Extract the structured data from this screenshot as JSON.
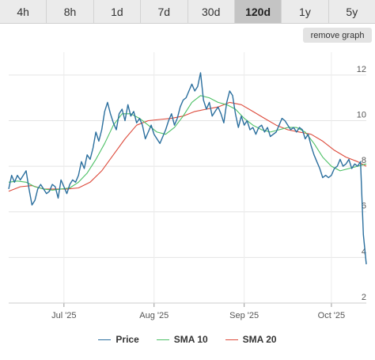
{
  "range_tabs": [
    "4h",
    "8h",
    "1d",
    "7d",
    "30d",
    "120d",
    "1y",
    "5y"
  ],
  "active_tab": "120d",
  "remove_graph_label": "remove graph",
  "chart_data": {
    "type": "line",
    "x_range": [
      "2025-06-12",
      "2025-10-13"
    ],
    "ylim": [
      2,
      13
    ],
    "y_ticks": [
      2,
      4,
      6,
      8,
      10,
      12
    ],
    "x_ticks": [
      {
        "date": "2025-07-01",
        "label": "Jul '25"
      },
      {
        "date": "2025-08-01",
        "label": "Aug '25"
      },
      {
        "date": "2025-09-01",
        "label": "Sep '25"
      },
      {
        "date": "2025-10-01",
        "label": "Oct '25"
      }
    ],
    "grid": true,
    "legend_position": "bottom",
    "series": [
      {
        "name": "Price",
        "color": "#2b6f9e",
        "points": [
          [
            "2025-06-12",
            7.0
          ],
          [
            "2025-06-13",
            7.6
          ],
          [
            "2025-06-14",
            7.3
          ],
          [
            "2025-06-15",
            7.6
          ],
          [
            "2025-06-16",
            7.4
          ],
          [
            "2025-06-17",
            7.6
          ],
          [
            "2025-06-18",
            7.8
          ],
          [
            "2025-06-19",
            7.0
          ],
          [
            "2025-06-20",
            6.3
          ],
          [
            "2025-06-21",
            6.5
          ],
          [
            "2025-06-22",
            7.0
          ],
          [
            "2025-06-23",
            7.2
          ],
          [
            "2025-06-24",
            7.0
          ],
          [
            "2025-06-25",
            6.8
          ],
          [
            "2025-06-26",
            6.9
          ],
          [
            "2025-06-27",
            7.2
          ],
          [
            "2025-06-28",
            7.1
          ],
          [
            "2025-06-29",
            6.6
          ],
          [
            "2025-06-30",
            7.4
          ],
          [
            "2025-07-01",
            7.1
          ],
          [
            "2025-07-02",
            6.8
          ],
          [
            "2025-07-03",
            7.2
          ],
          [
            "2025-07-04",
            7.4
          ],
          [
            "2025-07-05",
            7.3
          ],
          [
            "2025-07-06",
            7.6
          ],
          [
            "2025-07-07",
            8.2
          ],
          [
            "2025-07-08",
            7.9
          ],
          [
            "2025-07-09",
            8.5
          ],
          [
            "2025-07-10",
            8.3
          ],
          [
            "2025-07-11",
            8.8
          ],
          [
            "2025-07-12",
            9.5
          ],
          [
            "2025-07-13",
            9.1
          ],
          [
            "2025-07-14",
            9.6
          ],
          [
            "2025-07-15",
            10.4
          ],
          [
            "2025-07-16",
            10.8
          ],
          [
            "2025-07-17",
            10.3
          ],
          [
            "2025-07-18",
            9.9
          ],
          [
            "2025-07-19",
            9.6
          ],
          [
            "2025-07-20",
            10.3
          ],
          [
            "2025-07-21",
            10.5
          ],
          [
            "2025-07-22",
            10.0
          ],
          [
            "2025-07-23",
            10.7
          ],
          [
            "2025-07-24",
            10.2
          ],
          [
            "2025-07-25",
            10.4
          ],
          [
            "2025-07-26",
            9.9
          ],
          [
            "2025-07-27",
            10.1
          ],
          [
            "2025-07-28",
            9.8
          ],
          [
            "2025-07-29",
            9.2
          ],
          [
            "2025-07-30",
            9.5
          ],
          [
            "2025-07-31",
            9.8
          ],
          [
            "2025-08-01",
            9.4
          ],
          [
            "2025-08-02",
            9.2
          ],
          [
            "2025-08-03",
            9.0
          ],
          [
            "2025-08-04",
            9.3
          ],
          [
            "2025-08-05",
            9.6
          ],
          [
            "2025-08-06",
            10.0
          ],
          [
            "2025-08-07",
            10.3
          ],
          [
            "2025-08-08",
            9.8
          ],
          [
            "2025-08-09",
            10.1
          ],
          [
            "2025-08-10",
            10.6
          ],
          [
            "2025-08-11",
            10.9
          ],
          [
            "2025-08-12",
            11.0
          ],
          [
            "2025-08-13",
            11.3
          ],
          [
            "2025-08-14",
            11.6
          ],
          [
            "2025-08-15",
            11.3
          ],
          [
            "2025-08-16",
            11.5
          ],
          [
            "2025-08-17",
            12.1
          ],
          [
            "2025-08-18",
            10.9
          ],
          [
            "2025-08-19",
            10.5
          ],
          [
            "2025-08-20",
            10.8
          ],
          [
            "2025-08-21",
            10.2
          ],
          [
            "2025-08-22",
            10.4
          ],
          [
            "2025-08-23",
            10.6
          ],
          [
            "2025-08-24",
            10.3
          ],
          [
            "2025-08-25",
            9.9
          ],
          [
            "2025-08-26",
            10.8
          ],
          [
            "2025-08-27",
            11.3
          ],
          [
            "2025-08-28",
            11.1
          ],
          [
            "2025-08-29",
            10.3
          ],
          [
            "2025-08-30",
            9.7
          ],
          [
            "2025-08-31",
            10.2
          ],
          [
            "2025-09-01",
            9.8
          ],
          [
            "2025-09-02",
            10.0
          ],
          [
            "2025-09-03",
            9.6
          ],
          [
            "2025-09-04",
            9.7
          ],
          [
            "2025-09-05",
            9.4
          ],
          [
            "2025-09-06",
            9.7
          ],
          [
            "2025-09-07",
            9.8
          ],
          [
            "2025-09-08",
            9.5
          ],
          [
            "2025-09-09",
            9.7
          ],
          [
            "2025-09-10",
            9.3
          ],
          [
            "2025-09-11",
            9.4
          ],
          [
            "2025-09-12",
            9.5
          ],
          [
            "2025-09-13",
            9.8
          ],
          [
            "2025-09-14",
            10.1
          ],
          [
            "2025-09-15",
            10.0
          ],
          [
            "2025-09-16",
            9.8
          ],
          [
            "2025-09-17",
            9.6
          ],
          [
            "2025-09-18",
            9.7
          ],
          [
            "2025-09-19",
            9.5
          ],
          [
            "2025-09-20",
            9.7
          ],
          [
            "2025-09-21",
            9.6
          ],
          [
            "2025-09-22",
            9.2
          ],
          [
            "2025-09-23",
            9.4
          ],
          [
            "2025-09-24",
            8.9
          ],
          [
            "2025-09-25",
            8.5
          ],
          [
            "2025-09-26",
            8.2
          ],
          [
            "2025-09-27",
            7.9
          ],
          [
            "2025-09-28",
            7.5
          ],
          [
            "2025-09-29",
            7.6
          ],
          [
            "2025-09-30",
            7.5
          ],
          [
            "2025-10-01",
            7.6
          ],
          [
            "2025-10-02",
            7.9
          ],
          [
            "2025-10-03",
            8.0
          ],
          [
            "2025-10-04",
            8.3
          ],
          [
            "2025-10-05",
            8.0
          ],
          [
            "2025-10-06",
            8.1
          ],
          [
            "2025-10-07",
            8.3
          ],
          [
            "2025-10-08",
            7.9
          ],
          [
            "2025-10-09",
            8.1
          ],
          [
            "2025-10-10",
            8.0
          ],
          [
            "2025-10-11",
            8.2
          ],
          [
            "2025-10-12",
            5.0
          ],
          [
            "2025-10-13",
            3.7
          ]
        ]
      },
      {
        "name": "SMA 10",
        "color": "#4cc065",
        "points": [
          [
            "2025-06-12",
            7.3
          ],
          [
            "2025-06-15",
            7.35
          ],
          [
            "2025-06-18",
            7.3
          ],
          [
            "2025-06-21",
            7.1
          ],
          [
            "2025-06-24",
            7.0
          ],
          [
            "2025-06-27",
            6.95
          ],
          [
            "2025-06-30",
            7.0
          ],
          [
            "2025-07-03",
            7.05
          ],
          [
            "2025-07-06",
            7.3
          ],
          [
            "2025-07-09",
            7.7
          ],
          [
            "2025-07-12",
            8.3
          ],
          [
            "2025-07-15",
            9.0
          ],
          [
            "2025-07-18",
            9.8
          ],
          [
            "2025-07-21",
            10.3
          ],
          [
            "2025-07-24",
            10.3
          ],
          [
            "2025-07-27",
            10.1
          ],
          [
            "2025-07-30",
            9.8
          ],
          [
            "2025-08-02",
            9.5
          ],
          [
            "2025-08-05",
            9.4
          ],
          [
            "2025-08-08",
            9.7
          ],
          [
            "2025-08-11",
            10.2
          ],
          [
            "2025-08-14",
            10.8
          ],
          [
            "2025-08-17",
            11.1
          ],
          [
            "2025-08-20",
            11.0
          ],
          [
            "2025-08-23",
            10.8
          ],
          [
            "2025-08-26",
            10.7
          ],
          [
            "2025-08-29",
            10.5
          ],
          [
            "2025-09-01",
            10.1
          ],
          [
            "2025-09-04",
            9.8
          ],
          [
            "2025-09-07",
            9.6
          ],
          [
            "2025-09-10",
            9.5
          ],
          [
            "2025-09-13",
            9.6
          ],
          [
            "2025-09-16",
            9.7
          ],
          [
            "2025-09-19",
            9.7
          ],
          [
            "2025-09-22",
            9.5
          ],
          [
            "2025-09-25",
            9.0
          ],
          [
            "2025-09-28",
            8.4
          ],
          [
            "2025-10-01",
            8.0
          ],
          [
            "2025-10-04",
            7.8
          ],
          [
            "2025-10-07",
            7.9
          ],
          [
            "2025-10-10",
            8.0
          ],
          [
            "2025-10-13",
            8.1
          ]
        ]
      },
      {
        "name": "SMA 20",
        "color": "#dd4a3b",
        "points": [
          [
            "2025-06-12",
            6.9
          ],
          [
            "2025-06-16",
            7.1
          ],
          [
            "2025-06-20",
            7.15
          ],
          [
            "2025-06-24",
            7.0
          ],
          [
            "2025-06-28",
            7.0
          ],
          [
            "2025-07-02",
            7.0
          ],
          [
            "2025-07-06",
            7.05
          ],
          [
            "2025-07-10",
            7.3
          ],
          [
            "2025-07-14",
            7.8
          ],
          [
            "2025-07-18",
            8.5
          ],
          [
            "2025-07-22",
            9.2
          ],
          [
            "2025-07-26",
            9.8
          ],
          [
            "2025-07-30",
            10.0
          ],
          [
            "2025-08-03",
            10.05
          ],
          [
            "2025-08-07",
            10.1
          ],
          [
            "2025-08-11",
            10.2
          ],
          [
            "2025-08-15",
            10.4
          ],
          [
            "2025-08-19",
            10.5
          ],
          [
            "2025-08-23",
            10.6
          ],
          [
            "2025-08-27",
            10.8
          ],
          [
            "2025-08-31",
            10.7
          ],
          [
            "2025-09-04",
            10.4
          ],
          [
            "2025-09-08",
            10.1
          ],
          [
            "2025-09-12",
            9.8
          ],
          [
            "2025-09-16",
            9.6
          ],
          [
            "2025-09-20",
            9.5
          ],
          [
            "2025-09-24",
            9.4
          ],
          [
            "2025-09-28",
            9.1
          ],
          [
            "2025-10-02",
            8.7
          ],
          [
            "2025-10-06",
            8.4
          ],
          [
            "2025-10-10",
            8.2
          ],
          [
            "2025-10-13",
            8.0
          ]
        ]
      }
    ]
  }
}
